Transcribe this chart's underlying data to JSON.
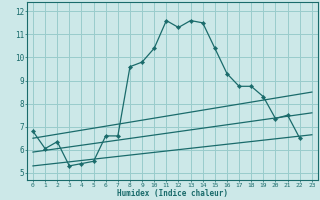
{
  "title": "",
  "xlabel": "Humidex (Indice chaleur)",
  "bg_color": "#cce8e8",
  "grid_color": "#99cccc",
  "line_color": "#1a6b6b",
  "xlim": [
    -0.5,
    23.5
  ],
  "ylim": [
    4.7,
    12.4
  ],
  "yticks": [
    5,
    6,
    7,
    8,
    9,
    10,
    11,
    12
  ],
  "xticks": [
    0,
    1,
    2,
    3,
    4,
    5,
    6,
    7,
    8,
    9,
    10,
    11,
    12,
    13,
    14,
    15,
    16,
    17,
    18,
    19,
    20,
    21,
    22,
    23
  ],
  "line1_x": [
    0,
    1,
    2,
    3,
    4,
    5,
    6,
    7,
    8,
    9,
    10,
    11,
    12,
    13,
    14,
    15,
    16,
    17,
    18,
    19,
    20,
    21,
    22
  ],
  "line1_y": [
    6.8,
    6.05,
    6.35,
    5.3,
    5.4,
    5.5,
    6.6,
    6.6,
    9.6,
    9.8,
    10.4,
    11.6,
    11.3,
    11.6,
    11.5,
    10.4,
    9.3,
    8.75,
    8.75,
    8.3,
    7.35,
    7.5,
    6.5
  ],
  "line2_x": [
    0,
    23
  ],
  "line2_y": [
    6.5,
    8.5
  ],
  "line3_x": [
    0,
    23
  ],
  "line3_y": [
    5.3,
    6.65
  ],
  "line4_x": [
    0,
    23
  ],
  "line4_y": [
    5.9,
    7.6
  ]
}
